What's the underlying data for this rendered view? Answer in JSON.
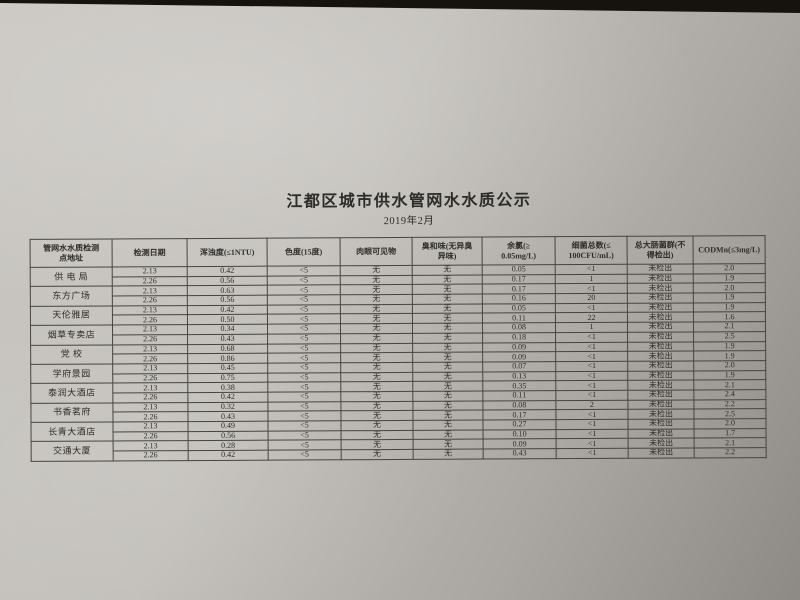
{
  "colors": {
    "desk_background": "#16130f",
    "paper_light": "#c9c6c1",
    "paper_shadow": "#8d8a85",
    "ink": "#2e2c29"
  },
  "title": "江都区城市供水管网水水质公示",
  "subtitle": "2019年2月",
  "table": {
    "headers": [
      "管网水水质检测\n点地址",
      "检测日期",
      "浑浊度(≤1NTU)",
      "色度(15度)",
      "肉眼可见物",
      "臭和味(无异臭\n异味)",
      "余氯(≥\n0.05mg/L)",
      "细菌总数(≤\n100CFU/mL)",
      "总大肠菌群(不\n得检出)",
      "CODMn(≤3mg/L)"
    ],
    "locations": [
      {
        "name": "供 电 局",
        "rows": [
          [
            "2.13",
            "0.42",
            "<5",
            "无",
            "无",
            "0.05",
            "<1",
            "未检出",
            "2.0"
          ],
          [
            "2.26",
            "0.56",
            "<5",
            "无",
            "无",
            "0.17",
            "1",
            "未检出",
            "1.9"
          ]
        ]
      },
      {
        "name": "东方广场",
        "rows": [
          [
            "2.13",
            "0.63",
            "<5",
            "无",
            "无",
            "0.17",
            "<1",
            "未检出",
            "2.0"
          ],
          [
            "2.26",
            "0.56",
            "<5",
            "无",
            "无",
            "0.16",
            "20",
            "未检出",
            "1.9"
          ]
        ]
      },
      {
        "name": "天伦雅居",
        "rows": [
          [
            "2.13",
            "0.42",
            "<5",
            "无",
            "无",
            "0.05",
            "<1",
            "未检出",
            "1.9"
          ],
          [
            "2.26",
            "0.50",
            "<5",
            "无",
            "无",
            "0.11",
            "22",
            "未检出",
            "1.6"
          ]
        ]
      },
      {
        "name": "烟草专卖店",
        "rows": [
          [
            "2.13",
            "0.34",
            "<5",
            "无",
            "无",
            "0.08",
            "1",
            "未检出",
            "2.1"
          ],
          [
            "2.26",
            "0.43",
            "<5",
            "无",
            "无",
            "0.18",
            "<1",
            "未检出",
            "2.5"
          ]
        ]
      },
      {
        "name": "党  校",
        "rows": [
          [
            "2.13",
            "0.68",
            "<5",
            "无",
            "无",
            "0.09",
            "<1",
            "未检出",
            "1.9"
          ],
          [
            "2.26",
            "0.86",
            "<5",
            "无",
            "无",
            "0.09",
            "<1",
            "未检出",
            "1.9"
          ]
        ]
      },
      {
        "name": "学府景园",
        "rows": [
          [
            "2.13",
            "0.45",
            "<5",
            "无",
            "无",
            "0.07",
            "<1",
            "未检出",
            "2.0"
          ],
          [
            "2.26",
            "0.75",
            "<5",
            "无",
            "无",
            "0.13",
            "<1",
            "未检出",
            "1.9"
          ]
        ]
      },
      {
        "name": "泰润大酒店",
        "rows": [
          [
            "2.13",
            "0.38",
            "<5",
            "无",
            "无",
            "0.35",
            "<1",
            "未检出",
            "2.1"
          ],
          [
            "2.26",
            "0.42",
            "<5",
            "无",
            "无",
            "0.11",
            "<1",
            "未检出",
            "2.4"
          ]
        ]
      },
      {
        "name": "书香茗府",
        "rows": [
          [
            "2.13",
            "0.32",
            "<5",
            "无",
            "无",
            "0.08",
            "2",
            "未检出",
            "2.2"
          ],
          [
            "2.26",
            "0.43",
            "<5",
            "无",
            "无",
            "0.17",
            "<1",
            "未检出",
            "2.5"
          ]
        ]
      },
      {
        "name": "长青大酒店",
        "rows": [
          [
            "2.13",
            "0.49",
            "<5",
            "无",
            "无",
            "0.27",
            "<1",
            "未检出",
            "2.0"
          ],
          [
            "2.26",
            "0.56",
            "<5",
            "无",
            "无",
            "0.10",
            "<1",
            "未检出",
            "1.7"
          ]
        ]
      },
      {
        "name": "交通大厦",
        "rows": [
          [
            "2.13",
            "0.28",
            "<5",
            "无",
            "无",
            "0.09",
            "<1",
            "未检出",
            "2.1"
          ],
          [
            "2.26",
            "0.42",
            "<5",
            "无",
            "无",
            "0.43",
            "<1",
            "未检出",
            "2.2"
          ]
        ]
      }
    ]
  }
}
